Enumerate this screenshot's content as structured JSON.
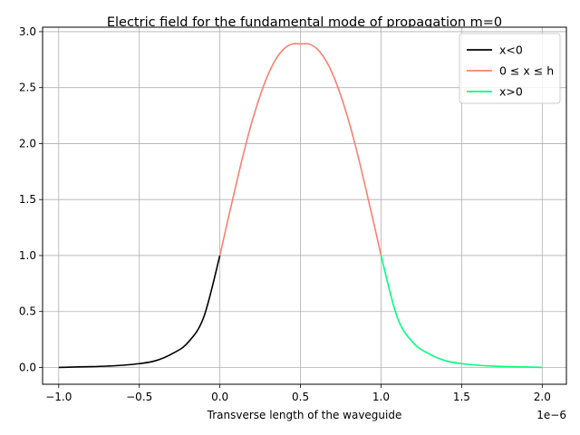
{
  "chart_data": {
    "type": "line",
    "title": "Electric field for the fundamental mode of propagation m=0",
    "xlabel": "Transverse length of the waveguide",
    "ylabel": "",
    "x_offset_label": "1e−6",
    "xlim": [
      -1.1,
      2.15
    ],
    "ylim": [
      -0.15,
      3.04
    ],
    "grid": true,
    "legend_position": "top-right",
    "x_ticks": [
      -1.0,
      -0.5,
      0.0,
      0.5,
      1.0,
      1.5,
      2.0
    ],
    "x_tick_labels": [
      "−1.0",
      "−0.5",
      "0.0",
      "0.5",
      "1.0",
      "1.5",
      "2.0"
    ],
    "y_ticks": [
      0.0,
      0.5,
      1.0,
      1.5,
      2.0,
      2.5,
      3.0
    ],
    "y_tick_labels": [
      "0.0",
      "0.5",
      "1.0",
      "1.5",
      "2.0",
      "2.5",
      "3.0"
    ],
    "series": [
      {
        "name": "x<0",
        "color": "#000000",
        "x": [
          -1.0,
          -0.9,
          -0.8,
          -0.7,
          -0.6,
          -0.5,
          -0.4,
          -0.3,
          -0.2,
          -0.1,
          0.0
        ],
        "y": [
          0.0,
          0.004,
          0.007,
          0.012,
          0.02,
          0.034,
          0.06,
          0.12,
          0.22,
          0.45,
          1.0
        ]
      },
      {
        "name": "0 ≤ x ≤ h",
        "color": "#fa8072",
        "x": [
          0.0,
          0.05,
          0.1,
          0.15,
          0.2,
          0.25,
          0.3,
          0.35,
          0.4,
          0.45,
          0.5,
          0.55,
          0.6,
          0.65,
          0.7,
          0.75,
          0.8,
          0.85,
          0.9,
          0.95,
          1.0
        ],
        "y": [
          1.0,
          1.32,
          1.63,
          1.93,
          2.2,
          2.43,
          2.62,
          2.76,
          2.85,
          2.89,
          2.89,
          2.89,
          2.85,
          2.76,
          2.62,
          2.43,
          2.2,
          1.93,
          1.63,
          1.32,
          1.0
        ]
      },
      {
        "name": "x>0",
        "color": "#00ff7f",
        "x": [
          1.0,
          1.1,
          1.2,
          1.3,
          1.4,
          1.5,
          1.6,
          1.7,
          1.8,
          1.9,
          2.0
        ],
        "y": [
          1.0,
          0.45,
          0.22,
          0.12,
          0.06,
          0.034,
          0.02,
          0.012,
          0.007,
          0.004,
          0.0
        ]
      }
    ]
  }
}
